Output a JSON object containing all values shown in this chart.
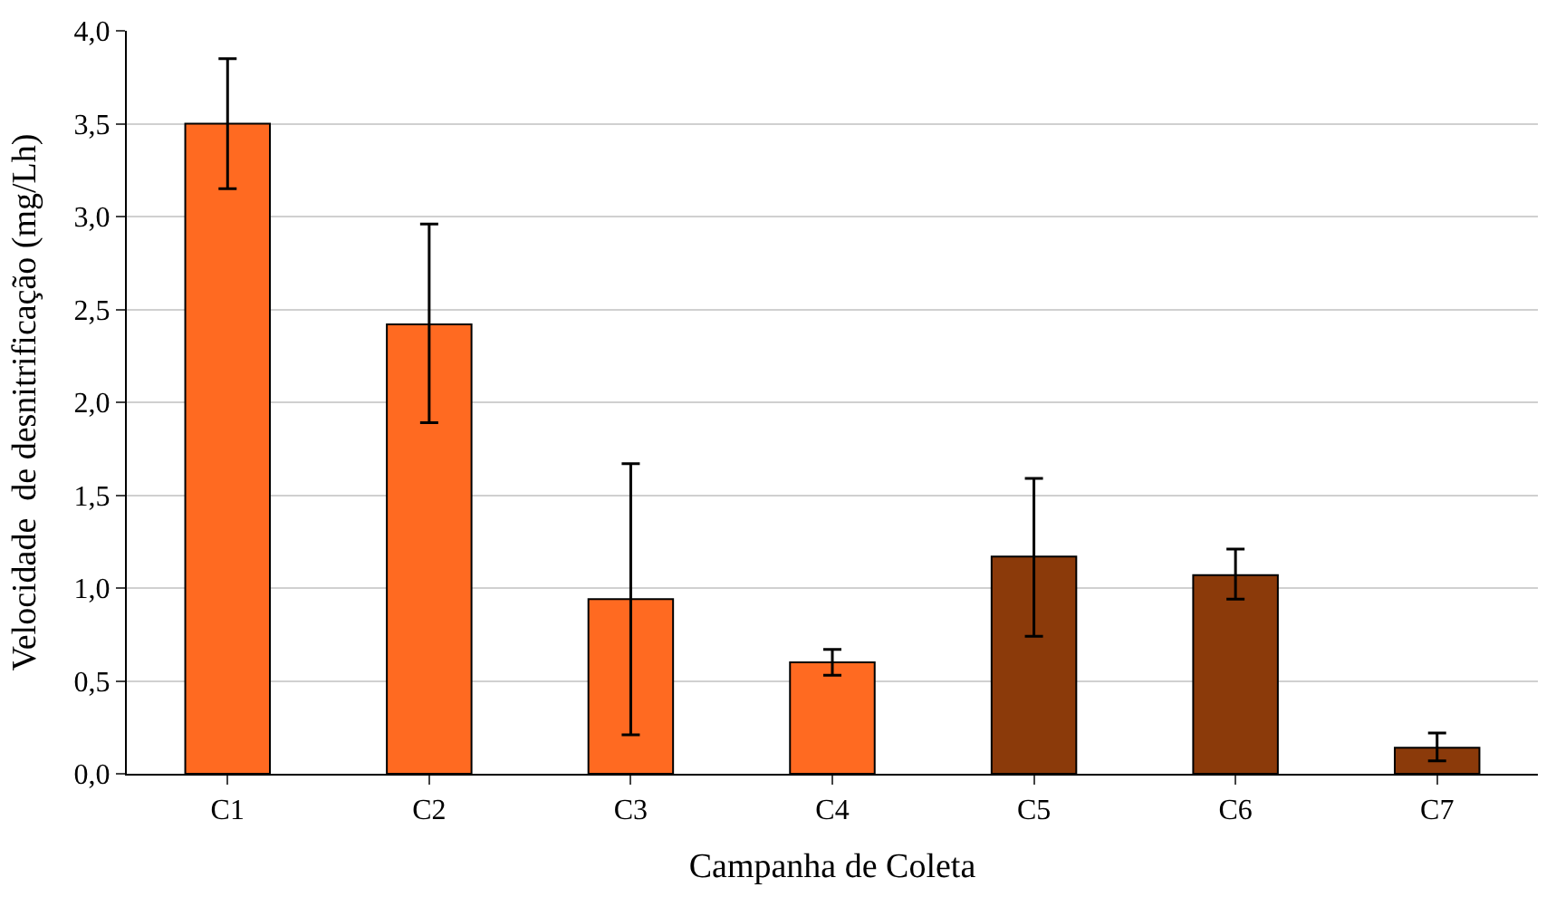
{
  "chart_data": {
    "type": "bar",
    "xlabel": "Campanha de Coleta",
    "ylabel": "Velocidade  de desnitrificação (mg/Lh)",
    "categories": [
      "C1",
      "C2",
      "C3",
      "C4",
      "C5",
      "C6",
      "C7"
    ],
    "values": [
      3.5,
      2.42,
      0.94,
      0.6,
      1.17,
      1.07,
      0.14
    ],
    "colors": [
      "#ff6a21",
      "#ff6a21",
      "#ff6a21",
      "#ff6a21",
      "#8b3a0a",
      "#8b3a0a",
      "#8b3a0a"
    ],
    "errors": [
      [
        3.15,
        3.85
      ],
      [
        1.89,
        2.96
      ],
      [
        0.21,
        1.67
      ],
      [
        0.53,
        0.67
      ],
      [
        0.74,
        1.59
      ],
      [
        0.94,
        1.21
      ],
      [
        0.07,
        0.22
      ]
    ],
    "ylim": [
      0,
      4
    ],
    "yticks": [
      {
        "value": 0,
        "label": "0,0"
      },
      {
        "value": 0.5,
        "label": "0,5"
      },
      {
        "value": 1,
        "label": "1,0"
      },
      {
        "value": 1.5,
        "label": "1,5"
      },
      {
        "value": 2,
        "label": "2,0"
      },
      {
        "value": 2.5,
        "label": "2,5"
      },
      {
        "value": 3,
        "label": "3,0"
      },
      {
        "value": 3.5,
        "label": "3,5"
      },
      {
        "value": 4,
        "label": "4,0"
      }
    ],
    "grid": "y"
  }
}
